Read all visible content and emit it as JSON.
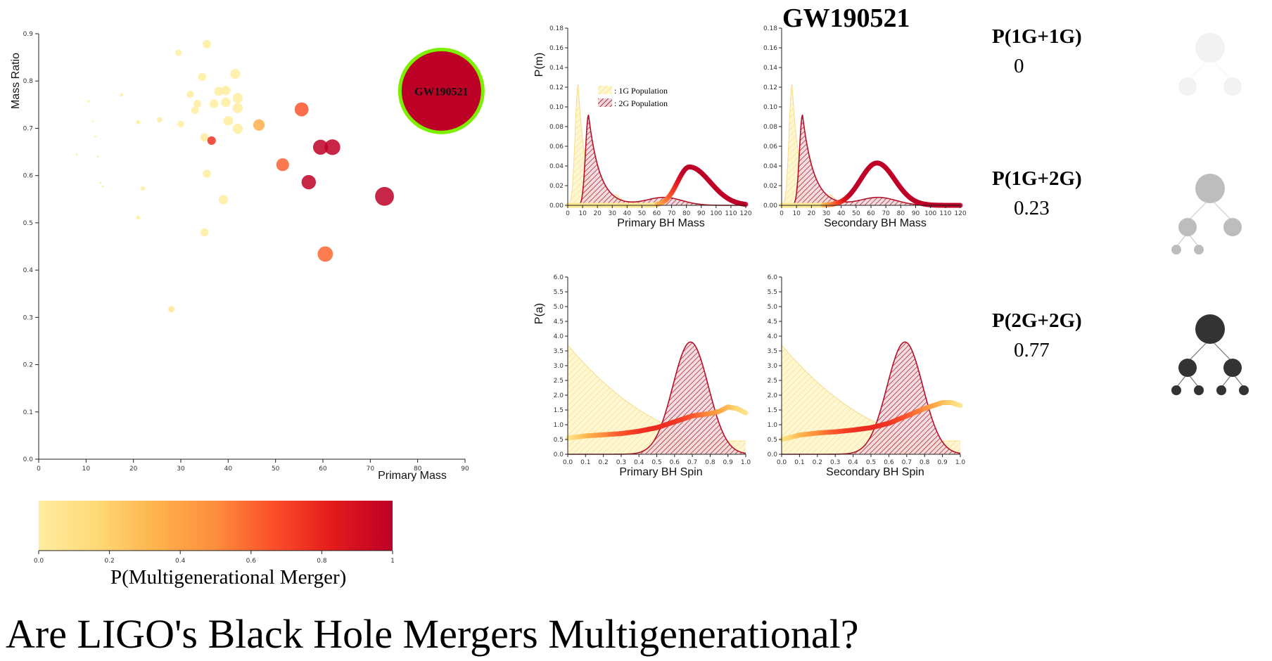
{
  "page_title": "Are LIGO's Black Hole Mergers Multigenerational?",
  "event_name": "GW190521",
  "colorbar": {
    "title": "P(Multigenerational Merger)",
    "ticks": [
      "0.0",
      "0.2",
      "0.4",
      "0.6",
      "0.8",
      "1"
    ],
    "colors": [
      "#ffeda0",
      "#fed976",
      "#feb24c",
      "#fd8d3c",
      "#fc4e2a",
      "#e31a1c",
      "#bd0026"
    ]
  },
  "probabilities": [
    {
      "label": "P(1G+1G)",
      "value": "0",
      "tree_color": "#f2f2f2",
      "generations": 1
    },
    {
      "label": "P(1G+2G)",
      "value": "0.23",
      "tree_color": "#bdbdbd",
      "generations": 2
    },
    {
      "label": "P(2G+2G)",
      "value": "0.77",
      "tree_color": "#333333",
      "generations": 3
    }
  ],
  "chart_data": [
    {
      "type": "scatter",
      "xlabel": "Primary Mass",
      "ylabel": "Mass Ratio",
      "xlim": [
        0,
        90
      ],
      "ylim": [
        0,
        0.9
      ],
      "xticks": [
        "0",
        "10",
        "20",
        "30",
        "40",
        "50",
        "60",
        "70",
        "80",
        "90"
      ],
      "yticks": [
        "0.0",
        "0.1",
        "0.2",
        "0.3",
        "0.4",
        "0.5",
        "0.6",
        "0.7",
        "0.8",
        "0.9"
      ],
      "points": [
        {
          "x": 8,
          "y": 0.645,
          "p": 0.0
        },
        {
          "x": 10.5,
          "y": 0.757,
          "p": 0.0
        },
        {
          "x": 11.5,
          "y": 0.715,
          "p": 0.0
        },
        {
          "x": 12,
          "y": 0.682,
          "p": 0.0
        },
        {
          "x": 12.5,
          "y": 0.64,
          "p": 0.02
        },
        {
          "x": 13,
          "y": 0.585,
          "p": 0.0
        },
        {
          "x": 13.5,
          "y": 0.577,
          "p": 0.0
        },
        {
          "x": 17.5,
          "y": 0.771,
          "p": 0.0
        },
        {
          "x": 21,
          "y": 0.713,
          "p": 0.0
        },
        {
          "x": 21,
          "y": 0.511,
          "p": 0.0
        },
        {
          "x": 22,
          "y": 0.573,
          "p": 0.0
        },
        {
          "x": 25.5,
          "y": 0.718,
          "p": 0.0
        },
        {
          "x": 28,
          "y": 0.317,
          "p": 0.05
        },
        {
          "x": 29.5,
          "y": 0.86,
          "p": 0.0
        },
        {
          "x": 30,
          "y": 0.709,
          "p": 0.0
        },
        {
          "x": 32,
          "y": 0.772,
          "p": 0.0
        },
        {
          "x": 33,
          "y": 0.738,
          "p": 0.0
        },
        {
          "x": 33.5,
          "y": 0.752,
          "p": 0.0
        },
        {
          "x": 34.5,
          "y": 0.809,
          "p": 0.0
        },
        {
          "x": 35,
          "y": 0.681,
          "p": 0.02
        },
        {
          "x": 35,
          "y": 0.48,
          "p": 0.0
        },
        {
          "x": 35.5,
          "y": 0.878,
          "p": 0.0
        },
        {
          "x": 35.5,
          "y": 0.604,
          "p": 0.0
        },
        {
          "x": 36.5,
          "y": 0.674,
          "p": 0.75
        },
        {
          "x": 37,
          "y": 0.752,
          "p": 0.0
        },
        {
          "x": 38,
          "y": 0.778,
          "p": 0.0
        },
        {
          "x": 39,
          "y": 0.549,
          "p": 0.0
        },
        {
          "x": 39.5,
          "y": 0.78,
          "p": 0.0
        },
        {
          "x": 39.5,
          "y": 0.755,
          "p": 0.0
        },
        {
          "x": 40,
          "y": 0.716,
          "p": 0.0
        },
        {
          "x": 41.5,
          "y": 0.815,
          "p": 0.0
        },
        {
          "x": 42,
          "y": 0.764,
          "p": 0.0
        },
        {
          "x": 42,
          "y": 0.743,
          "p": 0.0
        },
        {
          "x": 42,
          "y": 0.699,
          "p": 0.0
        },
        {
          "x": 46.5,
          "y": 0.707,
          "p": 0.35
        },
        {
          "x": 51.5,
          "y": 0.623,
          "p": 0.62
        },
        {
          "x": 55.5,
          "y": 0.74,
          "p": 0.65
        },
        {
          "x": 57,
          "y": 0.586,
          "p": 1.0
        },
        {
          "x": 59.5,
          "y": 0.66,
          "p": 1.0
        },
        {
          "x": 60.5,
          "y": 0.434,
          "p": 0.6
        },
        {
          "x": 62,
          "y": 0.66,
          "p": 1.0
        },
        {
          "x": 73,
          "y": 0.556,
          "p": 1.0
        },
        {
          "x": 85,
          "y": 0.779,
          "p": 1.0,
          "label": "GW190521",
          "highlight": true
        }
      ]
    },
    {
      "type": "area",
      "xlabel": "Primary BH Mass",
      "ylabel": "P(m)",
      "xlim": [
        0,
        120
      ],
      "ylim": [
        0,
        0.18
      ],
      "xticks": [
        "0",
        "10",
        "20",
        "30",
        "40",
        "50",
        "60",
        "70",
        "80",
        "90",
        "100",
        "110",
        "120"
      ],
      "yticks": [
        "0.00",
        "0.02",
        "0.04",
        "0.06",
        "0.08",
        "0.10",
        "0.12",
        "0.14",
        "0.16",
        "0.18"
      ],
      "legend": [
        "1G Population",
        "2G Population"
      ],
      "series": [
        {
          "name": "1G Population",
          "kind": "skewpeak",
          "peak": 7,
          "height": 0.123,
          "risew": 2.0,
          "fallw": 5.0,
          "bump": {
            "x": 32,
            "h": 0.01,
            "w": 4
          }
        },
        {
          "name": "2G Population",
          "kind": "skewpeak",
          "peak": 14,
          "height": 0.092,
          "risew": 2.0,
          "fallw": 7.5,
          "bump": {
            "x": 65,
            "h": 0.008,
            "w": 12
          }
        },
        {
          "name": "Posterior",
          "kind": "gauss2",
          "mu": 82,
          "height": 0.039,
          "wl": 8,
          "wr": 14,
          "hi_from": 60
        }
      ]
    },
    {
      "type": "area",
      "xlabel": "Secondary BH Mass",
      "ylabel": "",
      "xlim": [
        0,
        120
      ],
      "ylim": [
        0,
        0.18
      ],
      "xticks": [
        "0",
        "10",
        "20",
        "30",
        "40",
        "50",
        "60",
        "70",
        "80",
        "90",
        "100",
        "110",
        "120"
      ],
      "yticks": [
        "0.00",
        "0.02",
        "0.04",
        "0.06",
        "0.08",
        "0.10",
        "0.12",
        "0.14",
        "0.16",
        "0.18"
      ],
      "series": [
        {
          "name": "1G Population",
          "kind": "skewpeak",
          "peak": 7,
          "height": 0.123,
          "risew": 2.0,
          "fallw": 5.0,
          "bump": {
            "x": 32,
            "h": 0.01,
            "w": 4
          }
        },
        {
          "name": "2G Population",
          "kind": "skewpeak",
          "peak": 14,
          "height": 0.092,
          "risew": 2.0,
          "fallw": 7.5,
          "bump": {
            "x": 65,
            "h": 0.008,
            "w": 12
          }
        },
        {
          "name": "Posterior",
          "kind": "gauss2",
          "mu": 64,
          "height": 0.043,
          "wl": 11,
          "wr": 12,
          "hi_from": 28
        }
      ]
    },
    {
      "type": "area",
      "xlabel": "Primary BH Spin",
      "ylabel": "P(a)",
      "xlim": [
        0,
        1
      ],
      "ylim": [
        0,
        6
      ],
      "xticks": [
        "0.0",
        "0.1",
        "0.2",
        "0.3",
        "0.4",
        "0.5",
        "0.6",
        "0.7",
        "0.8",
        "0.9",
        "1.0"
      ],
      "yticks": [
        "0.0",
        "0.5",
        "1.0",
        "1.5",
        "2.0",
        "2.5",
        "3.0",
        "3.5",
        "4.0",
        "4.5",
        "5.0",
        "5.5",
        "6.0"
      ],
      "series": [
        {
          "name": "1G Population",
          "kind": "decay",
          "start": 3.7,
          "end": 0.45
        },
        {
          "name": "2G Population",
          "kind": "gauss2",
          "mu": 0.69,
          "height": 3.8,
          "wl": 0.1,
          "wr": 0.1
        },
        {
          "name": "Posterior",
          "kind": "line",
          "points": [
            [
              0,
              0.55
            ],
            [
              0.1,
              0.62
            ],
            [
              0.2,
              0.66
            ],
            [
              0.3,
              0.7
            ],
            [
              0.4,
              0.78
            ],
            [
              0.5,
              0.9
            ],
            [
              0.6,
              1.1
            ],
            [
              0.7,
              1.3
            ],
            [
              0.8,
              1.38
            ],
            [
              0.85,
              1.45
            ],
            [
              0.9,
              1.6
            ],
            [
              0.95,
              1.55
            ],
            [
              1.0,
              1.4
            ]
          ]
        }
      ]
    },
    {
      "type": "area",
      "xlabel": "Secondary BH Spin",
      "ylabel": "",
      "xlim": [
        0,
        1
      ],
      "ylim": [
        0,
        6
      ],
      "xticks": [
        "0.0",
        "0.1",
        "0.2",
        "0.3",
        "0.4",
        "0.5",
        "0.6",
        "0.7",
        "0.8",
        "0.9",
        "1.0"
      ],
      "yticks": [
        "0.0",
        "0.5",
        "1.0",
        "1.5",
        "2.0",
        "2.5",
        "3.0",
        "3.5",
        "4.0",
        "4.5",
        "5.0",
        "5.5",
        "6.0"
      ],
      "series": [
        {
          "name": "1G Population",
          "kind": "decay",
          "start": 3.7,
          "end": 0.45
        },
        {
          "name": "2G Population",
          "kind": "gauss2",
          "mu": 0.69,
          "height": 3.8,
          "wl": 0.1,
          "wr": 0.1
        },
        {
          "name": "Posterior",
          "kind": "line",
          "points": [
            [
              0,
              0.5
            ],
            [
              0.1,
              0.65
            ],
            [
              0.2,
              0.72
            ],
            [
              0.3,
              0.76
            ],
            [
              0.4,
              0.82
            ],
            [
              0.5,
              0.9
            ],
            [
              0.6,
              1.05
            ],
            [
              0.7,
              1.3
            ],
            [
              0.8,
              1.55
            ],
            [
              0.9,
              1.75
            ],
            [
              0.95,
              1.75
            ],
            [
              1.0,
              1.65
            ]
          ]
        }
      ]
    }
  ]
}
